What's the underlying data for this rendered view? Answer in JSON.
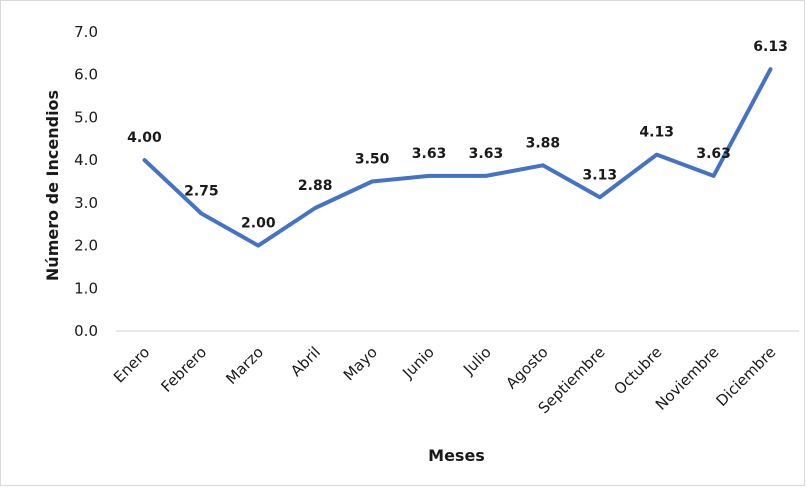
{
  "chart_data": {
    "type": "line",
    "title": "",
    "xlabel": "Meses",
    "ylabel": "Número de Incendios",
    "ylim": [
      0,
      7
    ],
    "ytick_step": 1,
    "ytick_labels": [
      "0.0",
      "1.0",
      "2.0",
      "3.0",
      "4.0",
      "5.0",
      "6.0",
      "7.0"
    ],
    "grid": false,
    "legend": "none",
    "categories": [
      "Enero",
      "Febrero",
      "Marzo",
      "Abril",
      "Mayo",
      "Junio",
      "Julio",
      "Agosto",
      "Septiembre",
      "Octubre",
      "Noviembre",
      "Diciembre"
    ],
    "series": [
      {
        "values": [
          4.0,
          2.75,
          2.0,
          2.88,
          3.5,
          3.63,
          3.63,
          3.88,
          3.13,
          4.13,
          3.63,
          6.13
        ],
        "labels": [
          "4.00",
          "2.75",
          "2.00",
          "2.88",
          "3.50",
          "3.63",
          "3.63",
          "3.88",
          "3.13",
          "4.13",
          "3.63",
          "6.13"
        ],
        "color": "#4472C4"
      }
    ]
  }
}
